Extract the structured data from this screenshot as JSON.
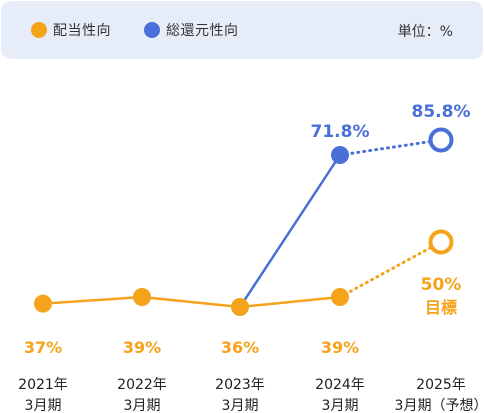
{
  "legend": {
    "payout": {
      "label": "配当性向",
      "color": "#f5a31a"
    },
    "total": {
      "label": "総還元性向",
      "color": "#4a6fd6"
    }
  },
  "unit": "単位：%",
  "chart_data": {
    "type": "line",
    "categories": [
      [
        "2021年",
        "3月期"
      ],
      [
        "2022年",
        "3月期"
      ],
      [
        "2023年",
        "3月期"
      ],
      [
        "2024年",
        "3月期"
      ],
      [
        "2025年",
        "3月期（予想）"
      ]
    ],
    "series": [
      {
        "name": "配当性向",
        "color": "#f5a31a",
        "values": [
          37,
          39,
          36,
          39,
          50
        ],
        "labels": [
          "37%",
          "39%",
          "36%",
          "39%",
          "50%"
        ],
        "forecast_note": "目標"
      },
      {
        "name": "総還元性向",
        "color": "#4a6fd6",
        "values": [
          null,
          null,
          36,
          71.8,
          85.8
        ],
        "labels": [
          "",
          "",
          "",
          "71.8%",
          "85.8%"
        ]
      }
    ],
    "forecast_index": 4,
    "ylim": [
      0,
      100
    ],
    "grid": false,
    "legend_position": "top"
  }
}
